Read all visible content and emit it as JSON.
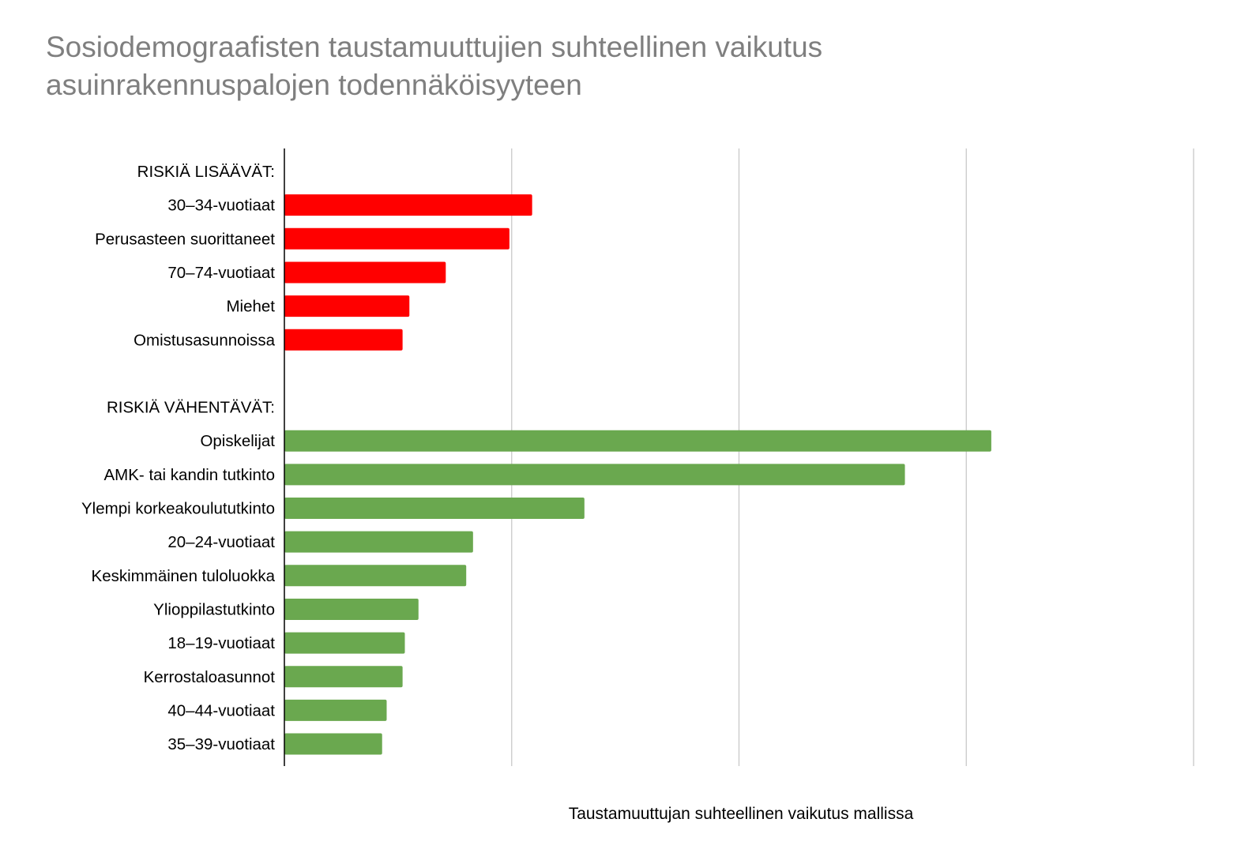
{
  "chart_data": {
    "type": "bar",
    "orientation": "horizontal",
    "title_lines": [
      "Sosiodemograafisten taustamuuttujien suhteellinen vaikutus",
      "asuinrakennuspalojen todennäköisyyteen"
    ],
    "xlabel": "Taustamuuttujan suhteellinen vaikutus mallissa",
    "ylabel": "",
    "xlim": [
      0,
      4
    ],
    "grid": true,
    "x_tick_labels_shown": false,
    "groups": [
      {
        "name": "RISKIÄ LISÄÄVÄT:",
        "color": "#ff0000",
        "categories": [
          "30–34-vuotiaat",
          "Perusasteen suorittaneet",
          "70–74-vuotiaat",
          "Miehet",
          "Omistusasunnoissa"
        ],
        "values": [
          1.09,
          0.99,
          0.71,
          0.55,
          0.52
        ]
      },
      {
        "name": "RISKIÄ VÄHENTÄVÄT:",
        "color": "#6aa84f",
        "categories": [
          "Opiskelijat",
          "AMK- tai kandin tutkinto",
          "Ylempi korkeakoulututkinto",
          "20–24-vuotiaat",
          "Keskimmäinen tuloluokka",
          "Ylioppilastutkinto",
          "18–19-vuotiaat",
          "Kerrostaloasunnot",
          "40–44-vuotiaat",
          "35–39-vuotiaat"
        ],
        "values": [
          3.11,
          2.73,
          1.32,
          0.83,
          0.8,
          0.59,
          0.53,
          0.52,
          0.45,
          0.43
        ]
      }
    ]
  }
}
